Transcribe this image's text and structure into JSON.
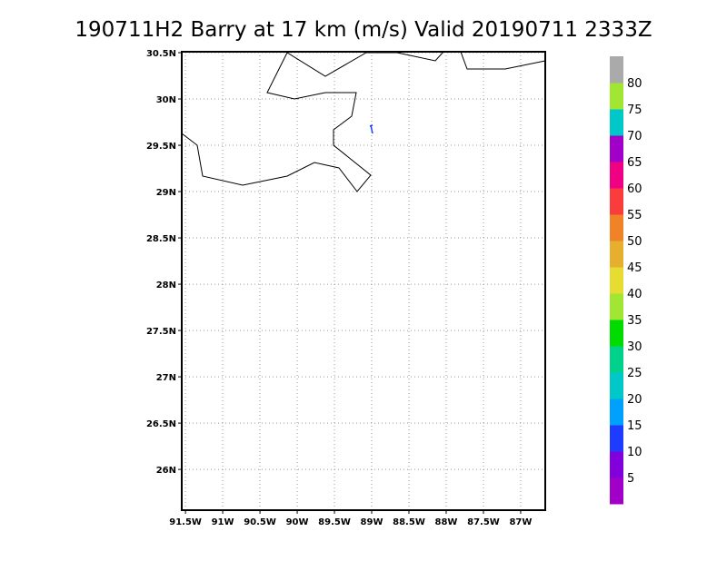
{
  "map": {
    "title": "190711H2 Barry at 17 km (m/s) Valid 20190711 2333Z",
    "xlim": [
      -91.55,
      -86.67
    ],
    "ylim": [
      25.56,
      30.51
    ],
    "xticks": [
      {
        "value": -91.5,
        "label": "91.5W"
      },
      {
        "value": -91,
        "label": "91W"
      },
      {
        "value": -90.5,
        "label": "90.5W"
      },
      {
        "value": -90,
        "label": "90W"
      },
      {
        "value": -89.5,
        "label": "89.5W"
      },
      {
        "value": -89,
        "label": "89W"
      },
      {
        "value": -88.5,
        "label": "88.5W"
      },
      {
        "value": -88,
        "label": "88W"
      },
      {
        "value": -87.5,
        "label": "87.5W"
      },
      {
        "value": -87,
        "label": "87W"
      }
    ],
    "yticks": [
      {
        "value": 26,
        "label": "26N"
      },
      {
        "value": 26.5,
        "label": "26.5N"
      },
      {
        "value": 27,
        "label": "27N"
      },
      {
        "value": 27.5,
        "label": "27.5N"
      },
      {
        "value": 28,
        "label": "28N"
      },
      {
        "value": 28.5,
        "label": "28.5N"
      },
      {
        "value": 29,
        "label": "29N"
      },
      {
        "value": 29.5,
        "label": "29.5N"
      },
      {
        "value": 30,
        "label": "30N"
      },
      {
        "value": 30.5,
        "label": "30.5N"
      }
    ],
    "grid": true,
    "colorbar": {
      "levels": [
        5,
        10,
        15,
        20,
        25,
        30,
        35,
        40,
        45,
        50,
        55,
        60,
        65,
        70,
        75,
        80
      ],
      "colors": [
        "#a000c8",
        "#8200dc",
        "#1e3cff",
        "#00a0ff",
        "#00c8c8",
        "#00d28c",
        "#00dc00",
        "#a0e632",
        "#e6dc32",
        "#e6af2d",
        "#f08228",
        "#fa3c3c",
        "#f00082",
        "#a000c8",
        "#00c8c8",
        "#a0e632",
        "#aaaaaa"
      ]
    }
  }
}
